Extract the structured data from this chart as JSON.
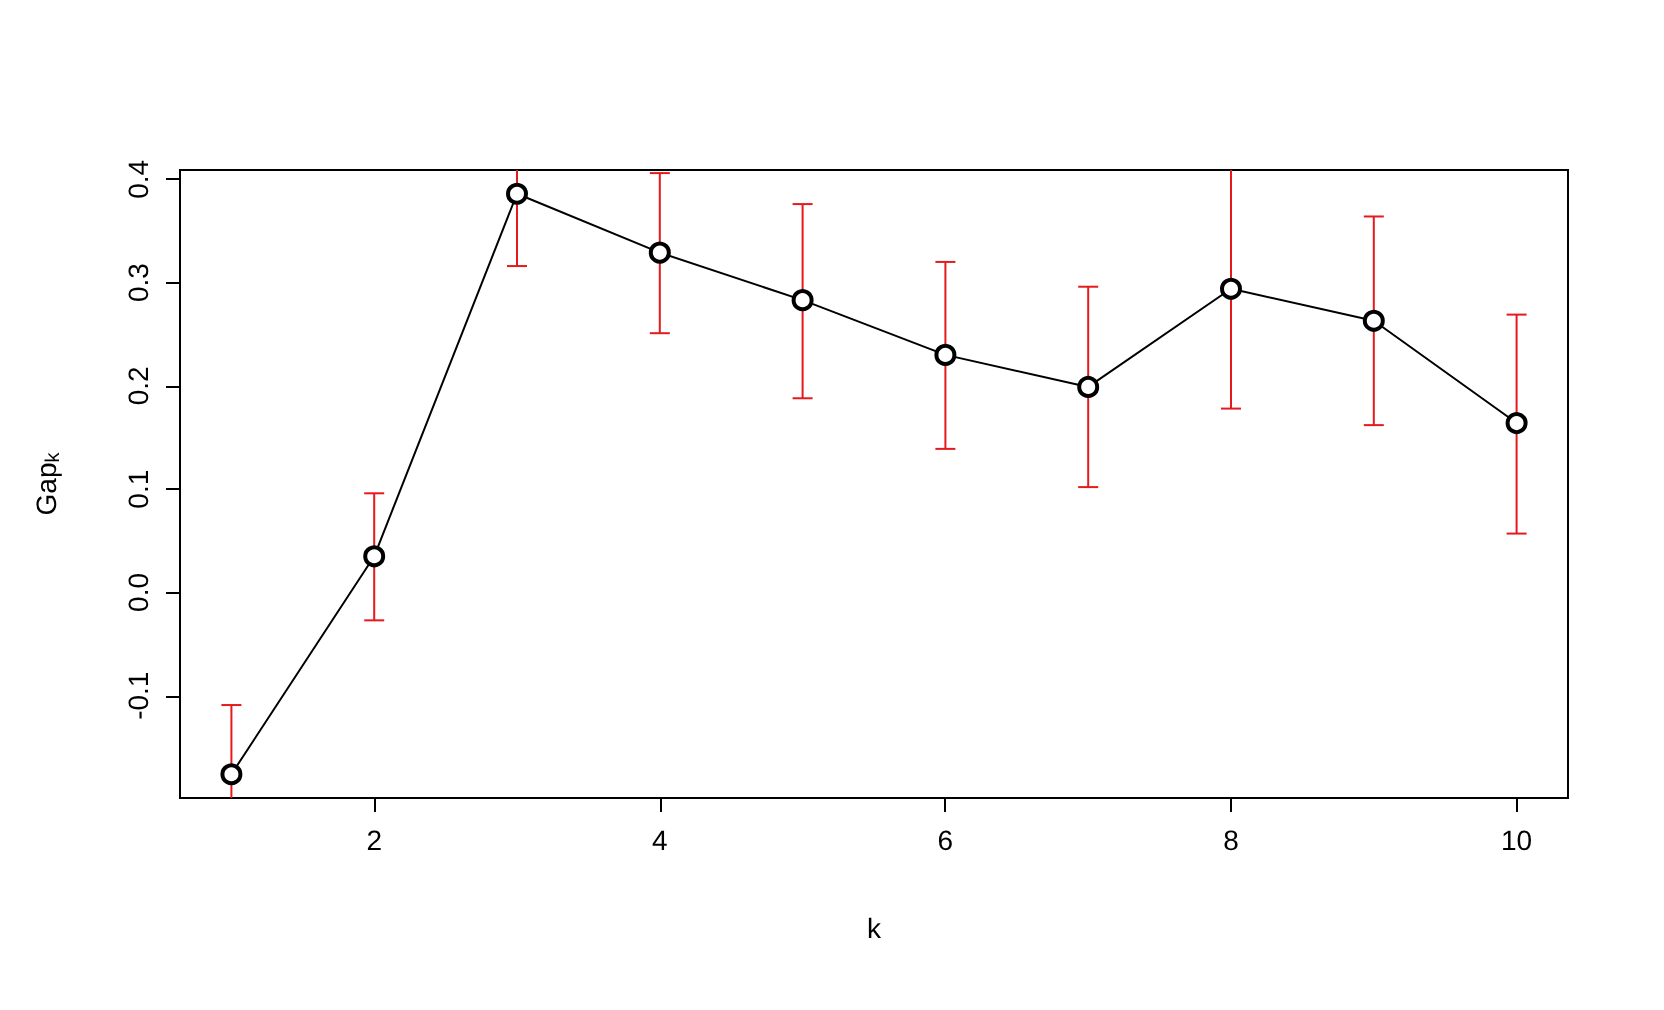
{
  "chart_data": {
    "type": "line",
    "xlabel": "k",
    "ylabel": "Gap$_{k}$",
    "x": [
      1,
      2,
      3,
      4,
      5,
      6,
      7,
      8,
      9,
      10
    ],
    "series": [
      {
        "color": "#000000",
        "values": [
          -0.176,
          0.035,
          0.386,
          0.329,
          0.283,
          0.23,
          0.199,
          0.294,
          0.263,
          0.164
        ],
        "errors": [
          [
            -0.199,
            -0.109
          ],
          [
            -0.027,
            0.096
          ],
          [
            0.316,
            0.409
          ],
          [
            0.251,
            0.406
          ],
          [
            0.188,
            0.376
          ],
          [
            0.139,
            0.32
          ],
          [
            0.102,
            0.296
          ],
          [
            0.178,
            0.409
          ],
          [
            0.162,
            0.364
          ],
          [
            0.057,
            0.269
          ]
        ]
      }
    ],
    "xlim": [
      0.64,
      10.36
    ],
    "xticks": [
      2,
      4,
      6,
      8,
      10
    ],
    "ylim": [
      -0.199,
      0.409
    ],
    "yticks": [
      {
        "value": -0.1,
        "label": "-0.1"
      },
      {
        "value": 0,
        "label": "0.0"
      },
      {
        "value": 0.1,
        "label": "0.1"
      },
      {
        "value": 0.2,
        "label": "0.2"
      },
      {
        "value": 0.3,
        "label": "0.3"
      },
      {
        "value": 0.4,
        "label": "0.4"
      }
    ],
    "marker": "circle",
    "line_style": "solid",
    "grid": false
  }
}
